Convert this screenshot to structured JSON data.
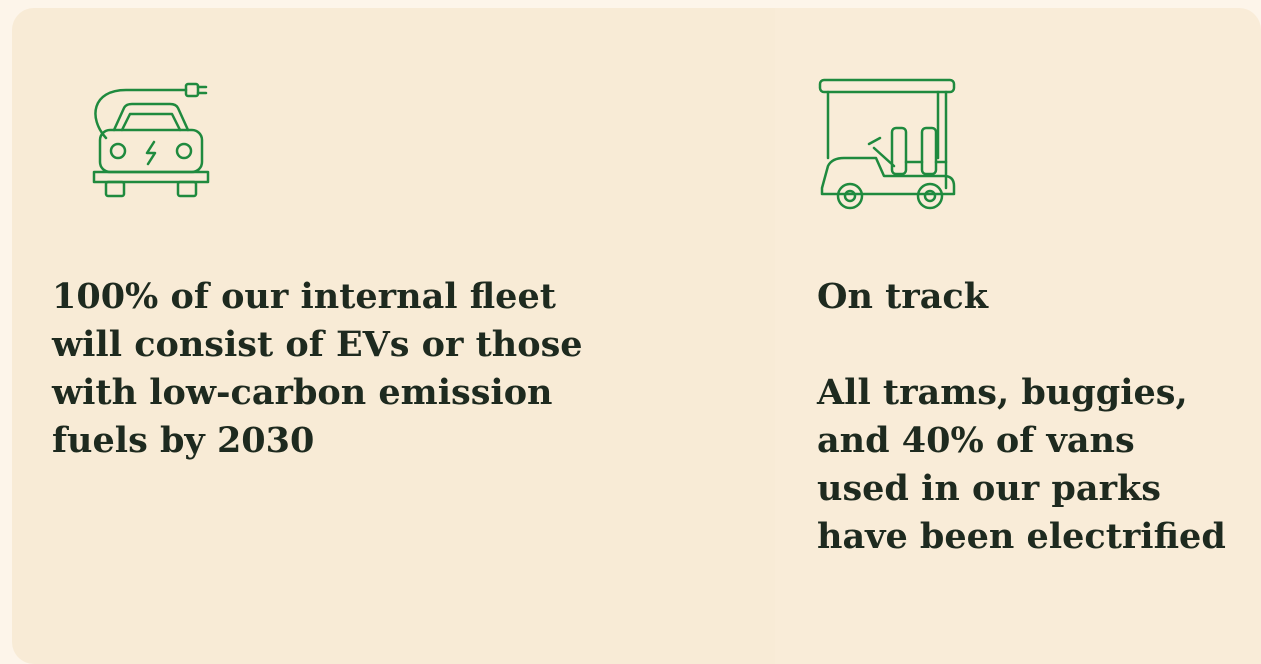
{
  "cards": [
    {
      "text": "100% of our internal fleet will consist of EVs or those with low-carbon emission fuels by 2030"
    },
    {
      "status": "On track",
      "text": "All trams, buggies, and 40% of vans used in our parks have been electrified"
    }
  ]
}
